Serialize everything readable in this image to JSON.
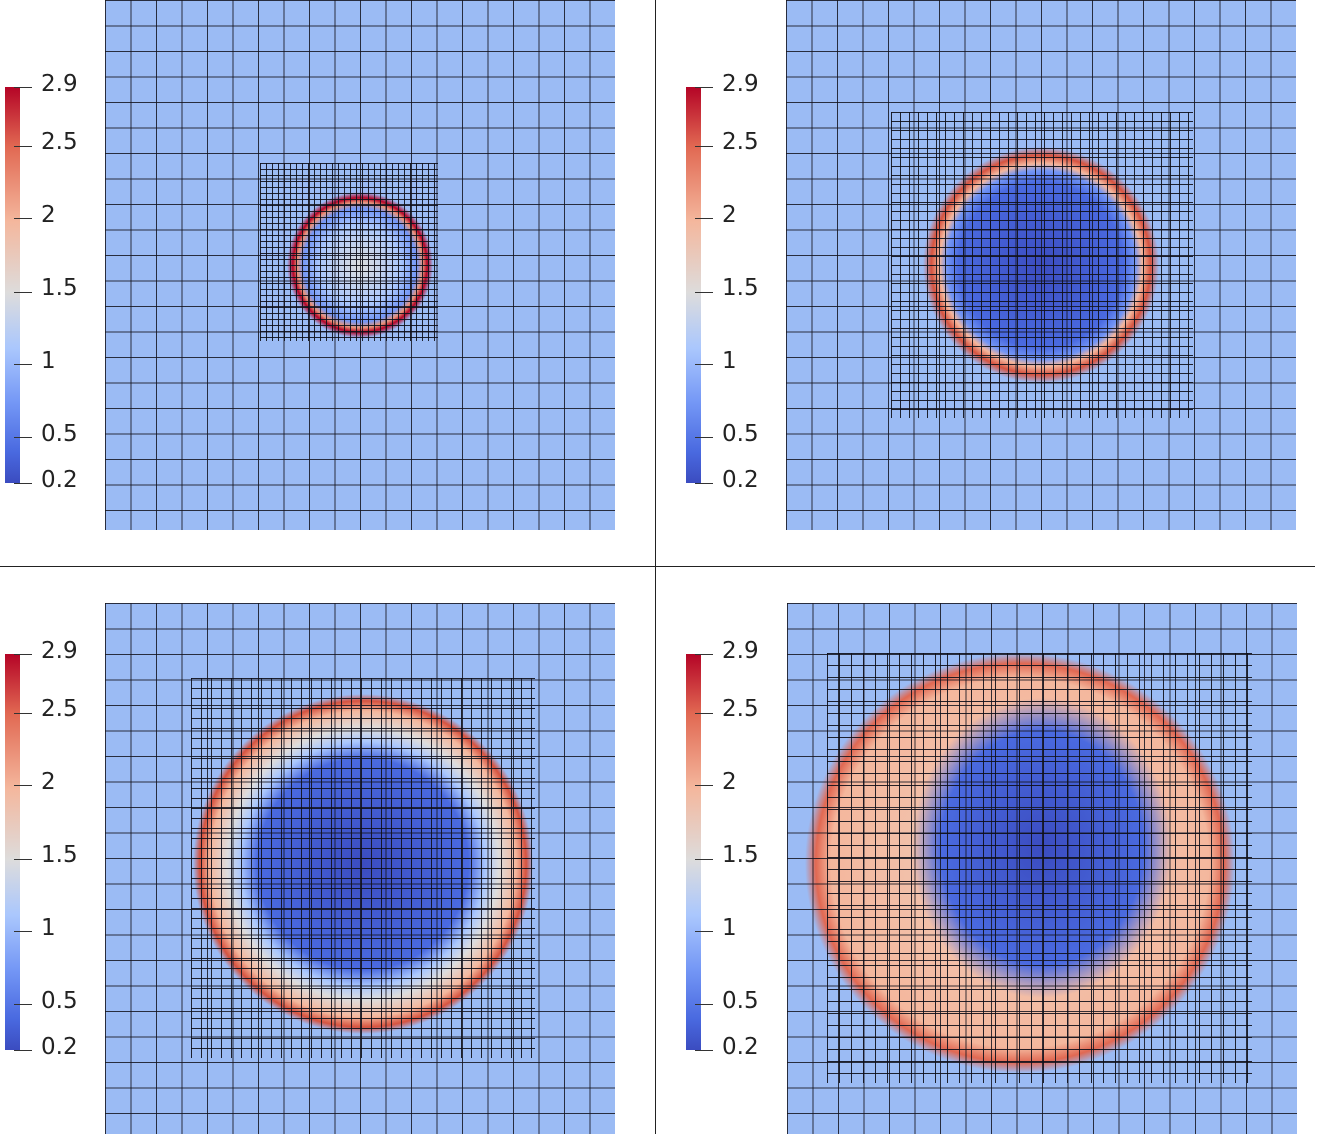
{
  "colorbar": {
    "ticks": [
      "2.9",
      "2.5",
      "2",
      "1.5",
      "1",
      "0.5",
      "0.2"
    ],
    "colors": [
      "#b40426",
      "#e16852",
      "#f4b79d",
      "#dddcdc",
      "#aac7fd",
      "#7396f5",
      "#3b4cc0"
    ],
    "min": 0.2,
    "max": 2.9
  },
  "panels": [
    {
      "name": "panel-top-left"
    },
    {
      "name": "panel-top-right"
    },
    {
      "name": "panel-bottom-left"
    },
    {
      "name": "panel-bottom-right"
    }
  ],
  "colors": {
    "background_field": "#9bbbf4",
    "low": "#3b4cc0",
    "high": "#b40426",
    "mesh_lines": "#14141e"
  }
}
